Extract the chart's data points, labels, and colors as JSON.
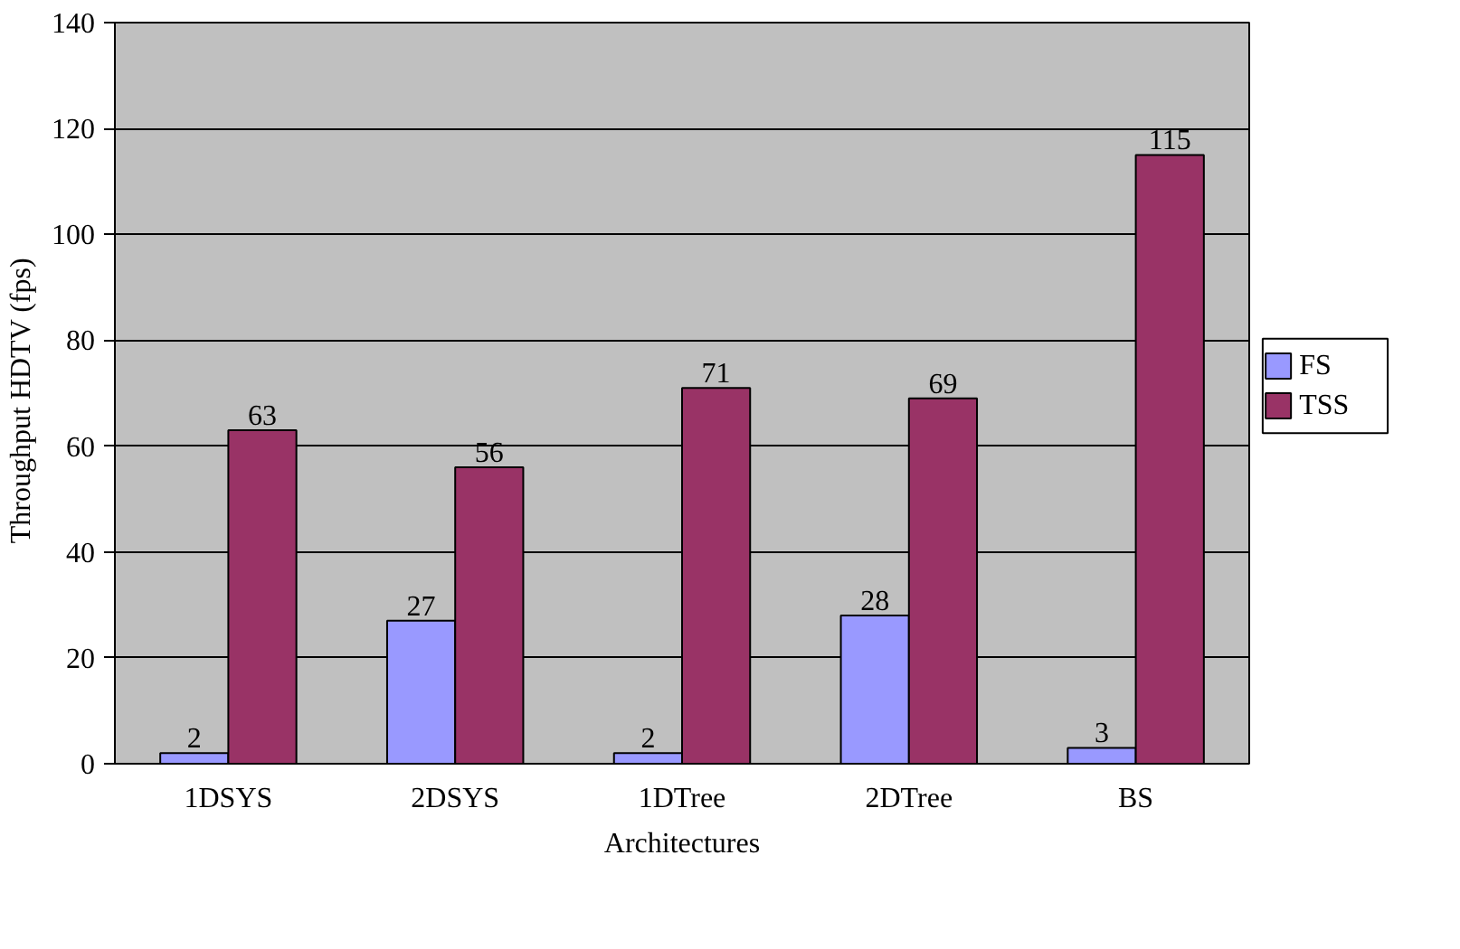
{
  "chart_data": {
    "type": "bar",
    "xlabel": "Architectures",
    "ylabel": "Throughput  HDTV  (fps)",
    "categories": [
      "1DSYS",
      "2DSYS",
      "1DTree",
      "2DTree",
      "BS"
    ],
    "series": [
      {
        "name": "FS",
        "color": "#9999ff",
        "values": [
          2,
          27,
          2,
          28,
          3
        ]
      },
      {
        "name": "TSS",
        "color": "#993366",
        "values": [
          63,
          56,
          71,
          69,
          115
        ]
      }
    ],
    "ylim": [
      0,
      140
    ],
    "yticks": [
      0,
      20,
      40,
      60,
      80,
      100,
      120,
      140
    ],
    "grid": "y",
    "legend": "right",
    "data_labels": true
  }
}
